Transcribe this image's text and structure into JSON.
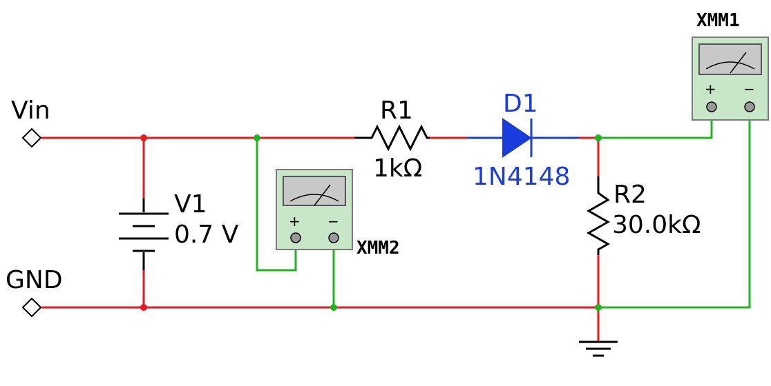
{
  "ports": {
    "vin": "Vin",
    "gnd": "GND"
  },
  "components": {
    "v1": {
      "ref": "V1",
      "value": "0.7 V"
    },
    "r1": {
      "ref": "R1",
      "value": "1kΩ"
    },
    "d1": {
      "ref": "D1",
      "value": "1N4148"
    },
    "r2": {
      "ref": "R2",
      "value": "30.0kΩ"
    },
    "xmm1": {
      "ref": "XMM1",
      "plus": "+",
      "minus": "−"
    },
    "xmm2": {
      "ref": "XMM2",
      "plus": "+",
      "minus": "−"
    }
  },
  "colors": {
    "wire_red": "#e8191f",
    "wire_green": "#21b421",
    "diode_blue": "#1a3cdc",
    "meter_body": "#c8e6c8",
    "meter_screen": "#c8c8c8"
  }
}
